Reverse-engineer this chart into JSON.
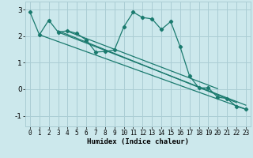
{
  "xlabel": "Humidex (Indice chaleur)",
  "bg_color": "#cce8ec",
  "grid_color": "#aacdd4",
  "line_color": "#1a7a6e",
  "xlim": [
    -0.5,
    23.5
  ],
  "ylim": [
    -1.4,
    3.3
  ],
  "yticks": [
    -1,
    0,
    1,
    2,
    3
  ],
  "xticks": [
    0,
    1,
    2,
    3,
    4,
    5,
    6,
    7,
    8,
    9,
    10,
    11,
    12,
    13,
    14,
    15,
    16,
    17,
    18,
    19,
    20,
    21,
    22,
    23
  ],
  "data_x": [
    0,
    1,
    2,
    3,
    4,
    5,
    6,
    7,
    8,
    9,
    10,
    11,
    12,
    13,
    14,
    15,
    16,
    17,
    18,
    19,
    20,
    21,
    22,
    23
  ],
  "data_y": [
    2.9,
    2.05,
    2.6,
    2.15,
    2.2,
    2.1,
    1.85,
    1.4,
    1.42,
    1.48,
    2.35,
    2.9,
    2.7,
    2.65,
    2.25,
    2.55,
    1.6,
    0.5,
    0.05,
    0.05,
    -0.3,
    -0.35,
    -0.65,
    -0.75
  ],
  "trend_lines": [
    {
      "x": [
        1,
        23
      ],
      "y": [
        2.05,
        -0.75
      ]
    },
    {
      "x": [
        3,
        23
      ],
      "y": [
        2.15,
        -0.6
      ]
    },
    {
      "x": [
        3,
        22
      ],
      "y": [
        2.2,
        -0.5
      ]
    },
    {
      "x": [
        4,
        20
      ],
      "y": [
        2.18,
        0.02
      ]
    }
  ]
}
